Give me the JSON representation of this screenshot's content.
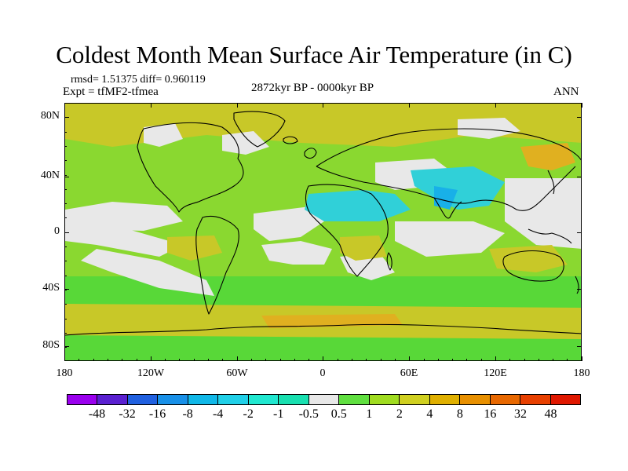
{
  "title": "Coldest Month Mean Surface Air Temperature (in C)",
  "stats": {
    "line1": "rmsd= 1.51375 diff= 0.960119",
    "expt": "Expt = tfMF2-tfmea"
  },
  "period": "2872kyr BP - 0000kyr BP",
  "season": "ANN",
  "axes": {
    "lat_labels": [
      "80N",
      "40N",
      "0",
      "40S",
      "80S"
    ],
    "lon_labels": [
      "180",
      "120W",
      "60W",
      "0",
      "60E",
      "120E",
      "180"
    ]
  },
  "colorbar": {
    "colors": [
      "#9a00ee",
      "#5a20d0",
      "#2060e0",
      "#1890e8",
      "#10b8e8",
      "#20d0e8",
      "#20e8d0",
      "#18e0b0",
      "#e8e8e8",
      "#60e040",
      "#a0dc20",
      "#d0d020",
      "#e0b000",
      "#e89000",
      "#e86800",
      "#e84000",
      "#e01800"
    ],
    "labels": [
      "-48",
      "-32",
      "-16",
      "-8",
      "-4",
      "-2",
      "-1",
      "-0.5",
      "0.5",
      "1",
      "2",
      "4",
      "8",
      "16",
      "32",
      "48"
    ]
  },
  "map_colors": {
    "base": "#8ad830",
    "neutral": "#e8e8e8",
    "warm": "#c8c828",
    "warmer": "#e0b020",
    "cool": "#30d0d8",
    "cooler": "#18b0e8",
    "green": "#58d838"
  }
}
